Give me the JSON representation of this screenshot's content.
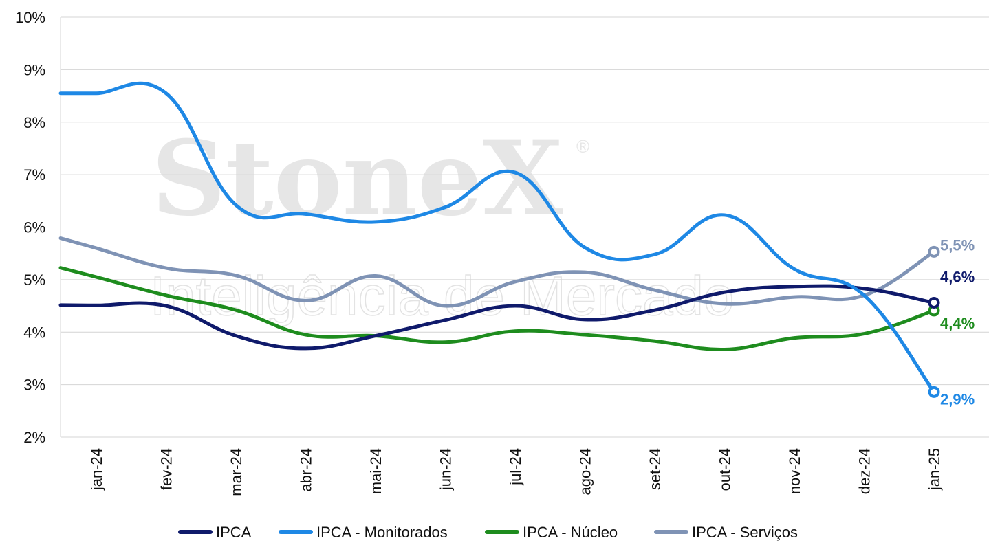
{
  "watermark": {
    "brand": "StoneX",
    "registered": "®",
    "subtitle": "Inteligência de Mercado"
  },
  "chart_data": {
    "type": "line",
    "categories": [
      "jan-24",
      "fev-24",
      "mar-24",
      "abr-24",
      "mai-24",
      "jun-24",
      "jul-24",
      "ago-24",
      "set-24",
      "out-24",
      "nov-24",
      "dez-24",
      "jan-25"
    ],
    "ylim": [
      2,
      10
    ],
    "yticks": [
      2,
      3,
      4,
      5,
      6,
      7,
      8,
      9,
      10
    ],
    "ytick_labels": [
      "2%",
      "3%",
      "4%",
      "5%",
      "6%",
      "7%",
      "8%",
      "9%",
      "10%"
    ],
    "grid": true,
    "legend_position": "bottom",
    "series": [
      {
        "name": "IPCA",
        "color": "#0f1a6b",
        "values": [
          4.51,
          4.5,
          3.93,
          3.69,
          3.93,
          4.23,
          4.5,
          4.24,
          4.42,
          4.76,
          4.87,
          4.83,
          4.56
        ],
        "end_label": "4,6%"
      },
      {
        "name": "IPCA - Monitorados",
        "color": "#1e88e5",
        "values": [
          8.55,
          8.55,
          6.42,
          6.25,
          6.1,
          6.38,
          7.04,
          5.61,
          5.48,
          6.23,
          5.2,
          4.7,
          2.86
        ],
        "end_label": "2,9%"
      },
      {
        "name": "IPCA - Núcleo",
        "color": "#1e8c1e",
        "values": [
          5.05,
          4.7,
          4.42,
          3.95,
          3.93,
          3.81,
          4.02,
          3.95,
          3.83,
          3.67,
          3.89,
          3.97,
          4.41
        ],
        "end_label": "4,4%"
      },
      {
        "name": "IPCA - Serviços",
        "color": "#7f93b5",
        "values": [
          5.6,
          5.22,
          5.08,
          4.6,
          5.07,
          4.5,
          4.96,
          5.14,
          4.8,
          4.54,
          4.67,
          4.7,
          5.53
        ],
        "end_label": "5,5%"
      }
    ]
  }
}
